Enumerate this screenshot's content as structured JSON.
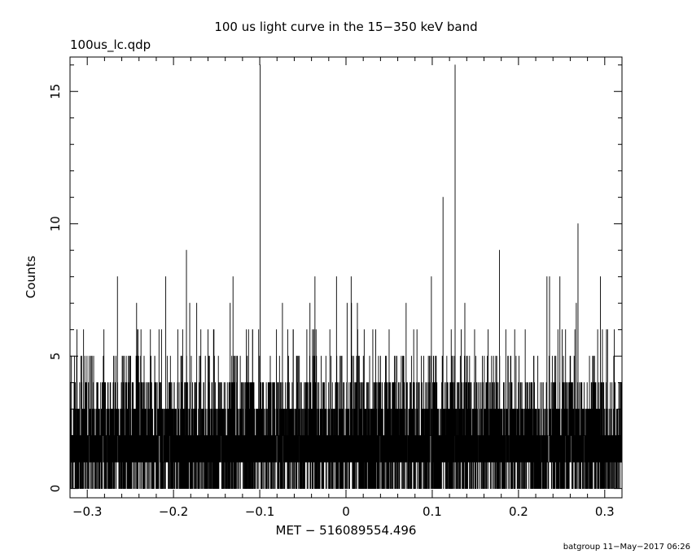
{
  "chart_data": {
    "type": "line",
    "title": "100 us light curve in the 15−350 keV band",
    "subtitle": "100us_lc.qdp",
    "xlabel": "MET − 516089554.496",
    "ylabel": "Counts",
    "footer": "batgroup 11−May−2017 06:26",
    "xlim": [
      -0.32,
      0.32
    ],
    "ylim": [
      -0.35,
      16.3
    ],
    "x_ticks": [
      -0.3,
      -0.2,
      -0.1,
      0,
      0.1,
      0.2,
      0.3
    ],
    "x_tick_labels": [
      "−0.3",
      "−0.2",
      "−0.1",
      "0",
      "0.1",
      "0.2",
      "0.3"
    ],
    "y_ticks": [
      0,
      5,
      10,
      15
    ],
    "y_tick_labels": [
      "0",
      "5",
      "10",
      "15"
    ],
    "bin_width": 0.0001,
    "x_start": -0.3196,
    "n_bins": 6393,
    "noise_profile": "Poisson noise around a mean of ~1.7 counts per bin, with occasional single-bin spikes",
    "notable_peaks": [
      {
        "x": -0.0995,
        "value": 16
      },
      {
        "x": 0.1265,
        "value": 16
      },
      {
        "x": 0.1125,
        "value": 11
      },
      {
        "x": 0.269,
        "value": 10
      },
      {
        "x": -0.185,
        "value": 9
      },
      {
        "x": 0.178,
        "value": 9
      },
      {
        "x": -0.265,
        "value": 8
      },
      {
        "x": -0.209,
        "value": 8
      },
      {
        "x": -0.131,
        "value": 8
      },
      {
        "x": -0.036,
        "value": 8
      },
      {
        "x": -0.011,
        "value": 8
      },
      {
        "x": 0.006,
        "value": 8
      },
      {
        "x": 0.099,
        "value": 8
      },
      {
        "x": 0.233,
        "value": 8
      },
      {
        "x": 0.236,
        "value": 8
      },
      {
        "x": 0.248,
        "value": 8
      },
      {
        "x": 0.295,
        "value": 8
      }
    ]
  }
}
